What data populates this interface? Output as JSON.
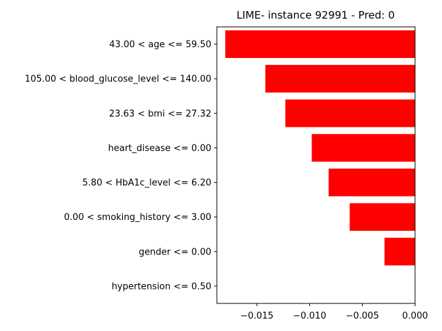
{
  "chart_data": {
    "type": "bar",
    "orientation": "horizontal",
    "title": "LIME- instance 92991 - Pred: 0",
    "xlabel": "",
    "ylabel": "",
    "categories": [
      "43.00 < age <= 59.50",
      "105.00 < blood_glucose_level <= 140.00",
      "23.63 < bmi <= 27.32",
      "heart_disease <= 0.00",
      "5.80 < HbA1c_level <= 6.20",
      "0.00 < smoking_history <= 3.00",
      "gender <= 0.00",
      "hypertension <= 0.50"
    ],
    "values": [
      -0.018,
      -0.0142,
      -0.0123,
      -0.0098,
      -0.0082,
      -0.0062,
      -0.0029,
      0.0
    ],
    "xlim": [
      -0.0188,
      0.0
    ],
    "xticks": [
      -0.015,
      -0.01,
      -0.005,
      0.0
    ],
    "xtick_labels": [
      "−0.015",
      "−0.010",
      "−0.005",
      "0.000"
    ],
    "grid": false,
    "legend": "none",
    "colors": {
      "bar": "#ff0000",
      "axis": "#000000"
    }
  }
}
